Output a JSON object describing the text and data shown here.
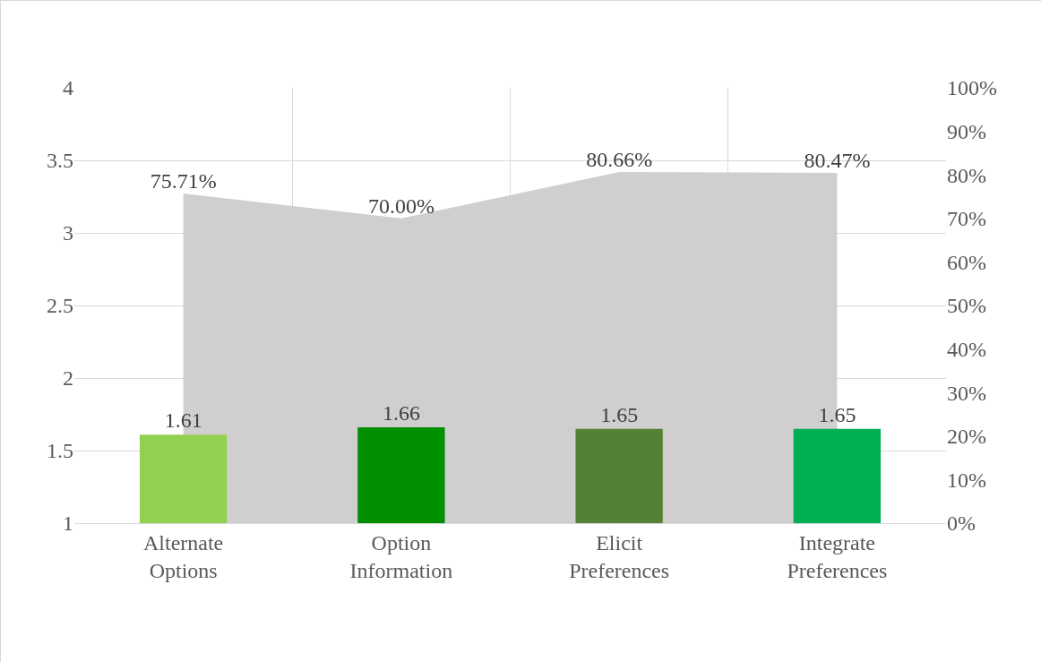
{
  "chart_data": {
    "type": "bar",
    "categories": [
      "Alternate Options",
      "Option Information",
      "Elicit Preferences",
      "Integrate Preferences"
    ],
    "series": [
      {
        "axis": "y",
        "colors": [
          "#92d050",
          "#008f00",
          "#538135",
          "#00b050"
        ],
        "values": [
          1.61,
          1.66,
          1.65,
          1.65
        ],
        "value_labels": [
          "1.61",
          "1.66",
          "1.65",
          "1.65"
        ]
      },
      {
        "type": "area",
        "axis": "y2",
        "color": "#d0cece",
        "values": [
          75.71,
          70.0,
          80.66,
          80.47
        ],
        "value_labels": [
          "75.71%",
          "70.00%",
          "80.66%",
          "80.47%"
        ]
      }
    ],
    "ylim": [
      1,
      4
    ],
    "yticks": [
      1,
      1.5,
      2,
      2.5,
      3,
      3.5,
      4
    ],
    "y2lim": [
      0,
      100
    ],
    "y2ticks": [
      {
        "value": 0,
        "label": "0%"
      },
      {
        "value": 10,
        "label": "10%"
      },
      {
        "value": 20,
        "label": "20%"
      },
      {
        "value": 30,
        "label": "30%"
      },
      {
        "value": 40,
        "label": "40%"
      },
      {
        "value": 50,
        "label": "50%"
      },
      {
        "value": 60,
        "label": "60%"
      },
      {
        "value": 70,
        "label": "70%"
      },
      {
        "value": 80,
        "label": "80%"
      },
      {
        "value": 90,
        "label": "90%"
      },
      {
        "value": 100,
        "label": "100%"
      }
    ],
    "grid": true,
    "legend": false
  }
}
